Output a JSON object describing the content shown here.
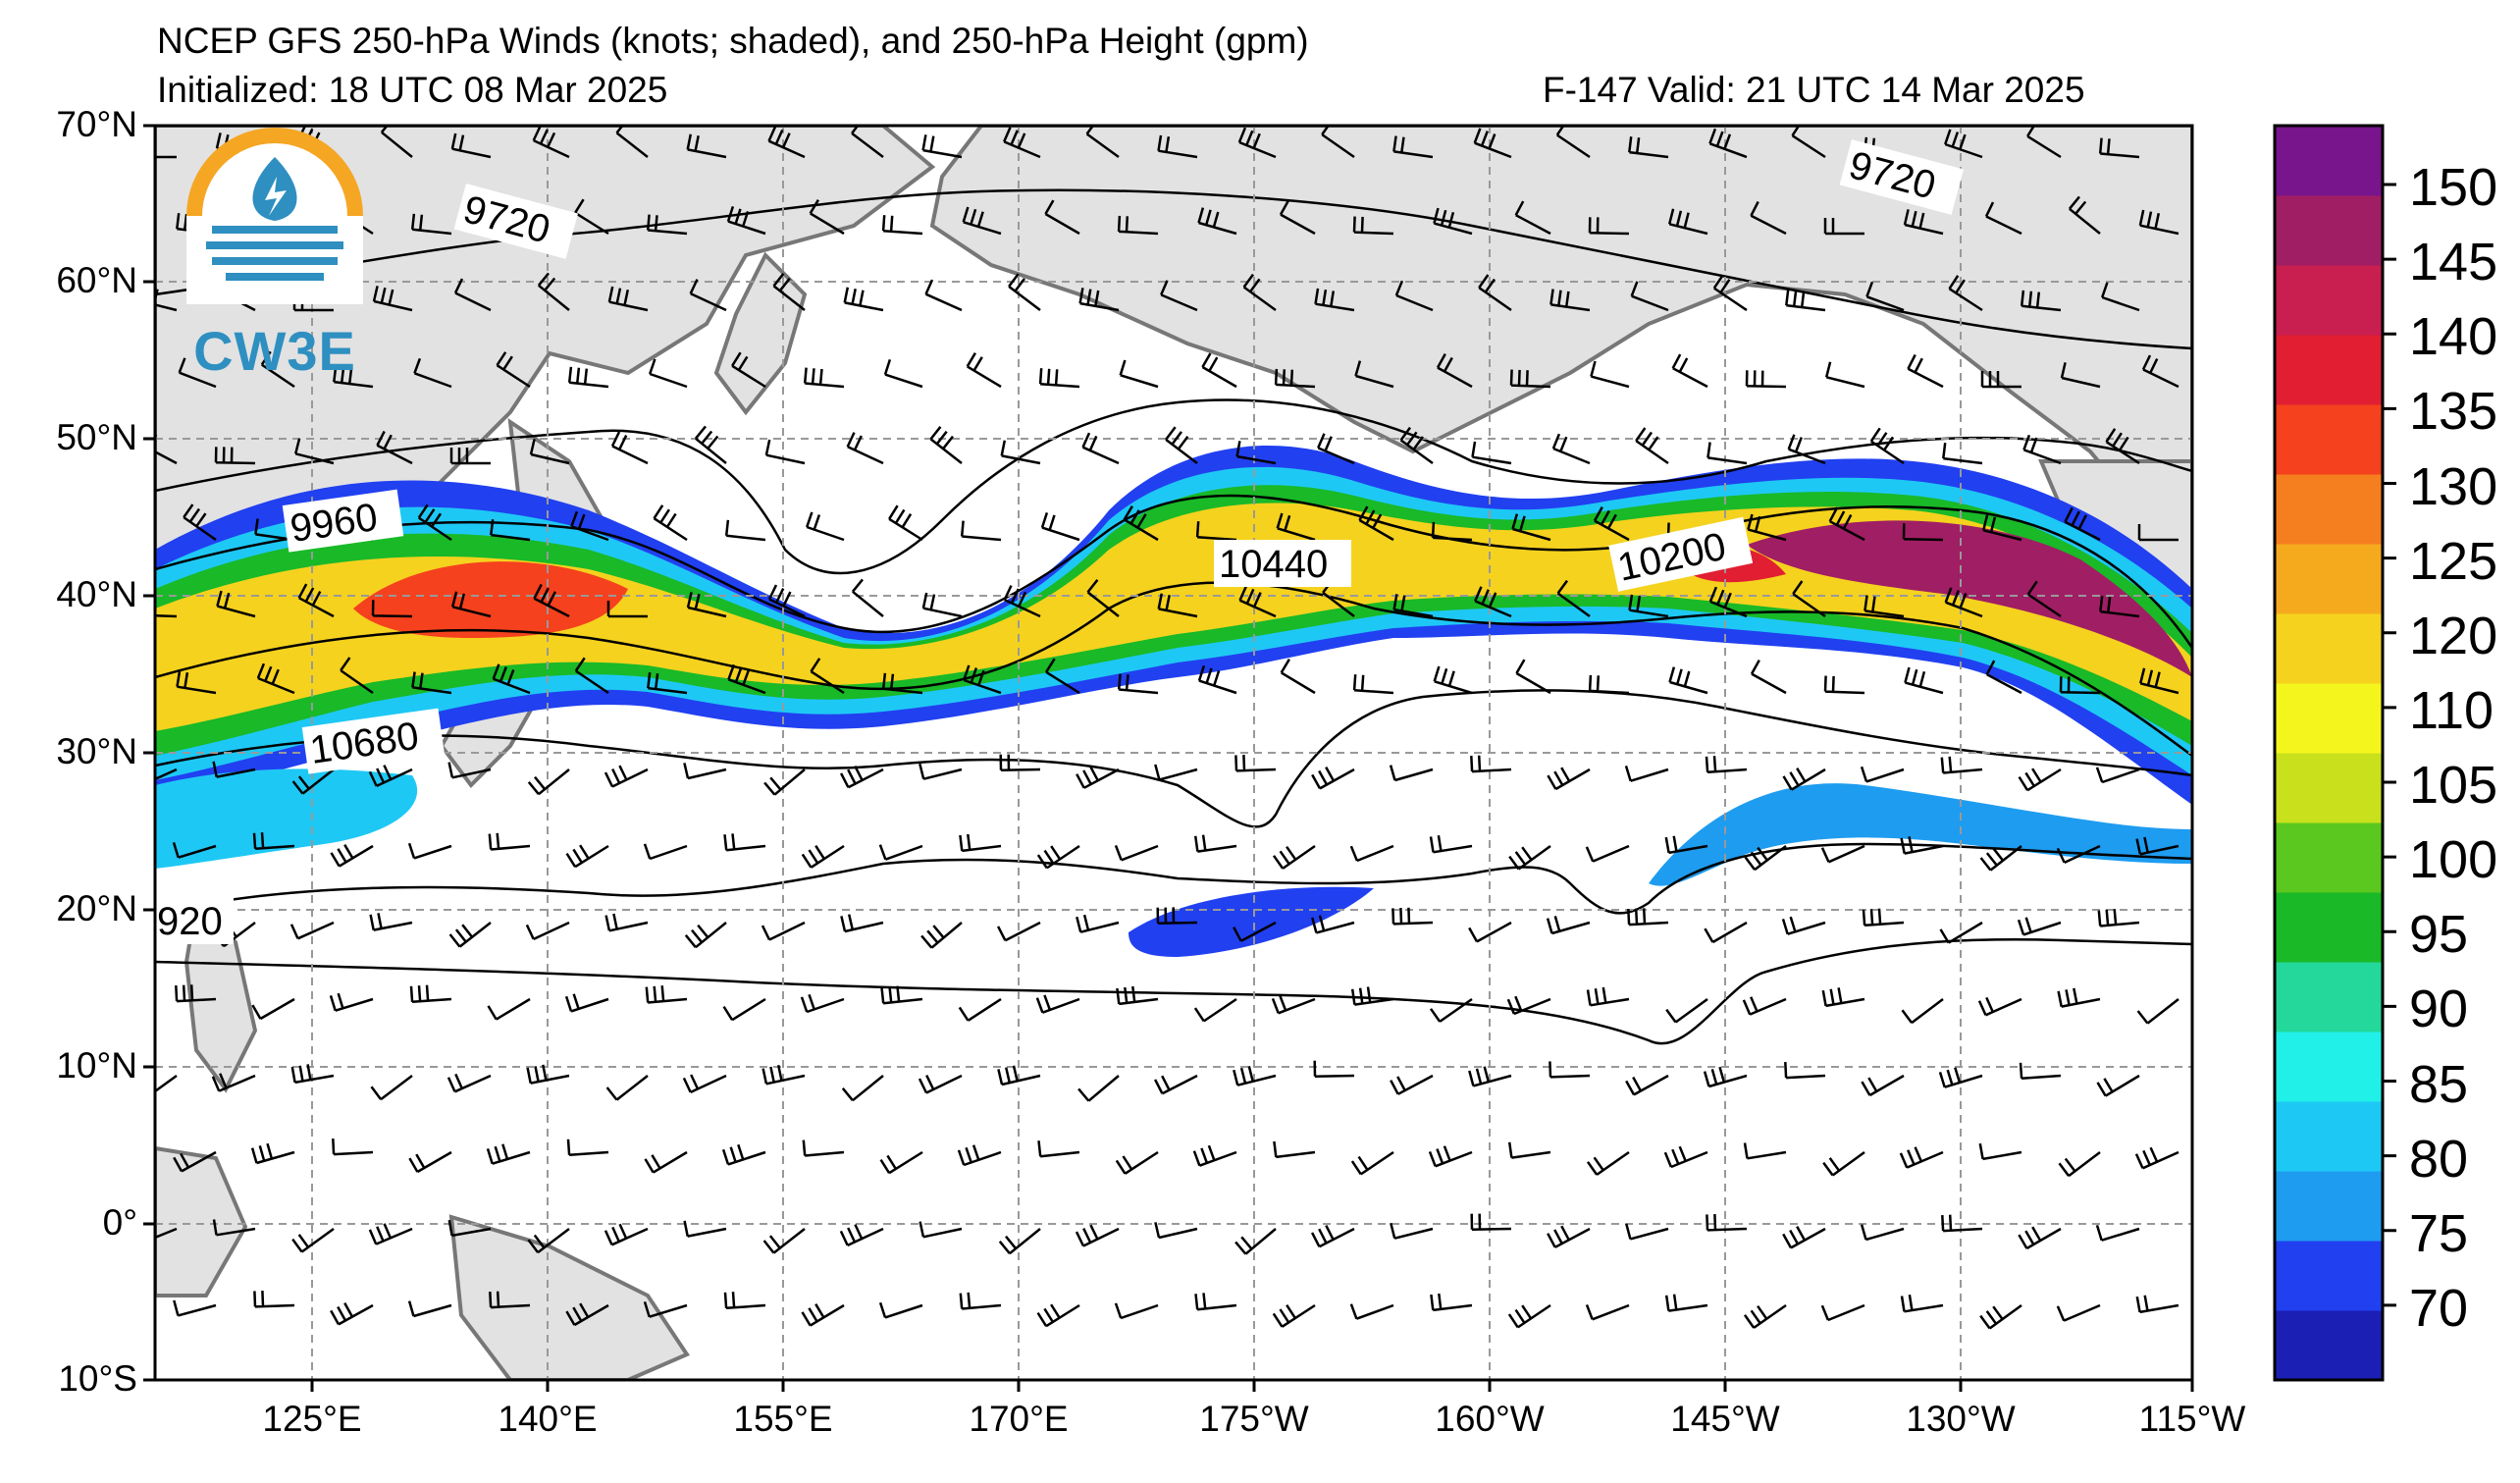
{
  "title": {
    "line1": "NCEP GFS 250-hPa Winds (knots; shaded), and 250-hPa Height (gpm)",
    "initialized": "Initialized: 18 UTC 08 Mar 2025",
    "valid": "F-147  Valid: 21 UTC 14 Mar 2025"
  },
  "logo": {
    "text": "CW3E",
    "icon": "cw3e-logo-icon"
  },
  "map": {
    "lat_labels": [
      "70°N",
      "60°N",
      "50°N",
      "40°N",
      "30°N",
      "20°N",
      "10°N",
      "0°",
      "10°S"
    ],
    "lon_labels": [
      "125°E",
      "140°E",
      "155°E",
      "170°E",
      "175°W",
      "160°W",
      "145°W",
      "130°W",
      "115°W"
    ],
    "contour_labels": [
      "9720",
      "9960",
      "10440",
      "10200",
      "10680",
      "9720",
      "920"
    ],
    "land_color": "#e2e2e2",
    "coast_color": "#777777"
  },
  "colorbar": {
    "ticks": [
      "150",
      "145",
      "140",
      "135",
      "130",
      "125",
      "120",
      "110",
      "105",
      "100",
      "95",
      "90",
      "85",
      "80",
      "75",
      "70"
    ],
    "colors": [
      "#1c1fb4",
      "#2140f0",
      "#1e9cf0",
      "#1ec8f5",
      "#20f0e8",
      "#23d89a",
      "#19b928",
      "#5ac81e",
      "#c8e11c",
      "#f5f51e",
      "#f5d21e",
      "#f5aa1e",
      "#f57f1e",
      "#f5411e",
      "#e11e32",
      "#c81e50",
      "#a01e64",
      "#78148c"
    ]
  }
}
